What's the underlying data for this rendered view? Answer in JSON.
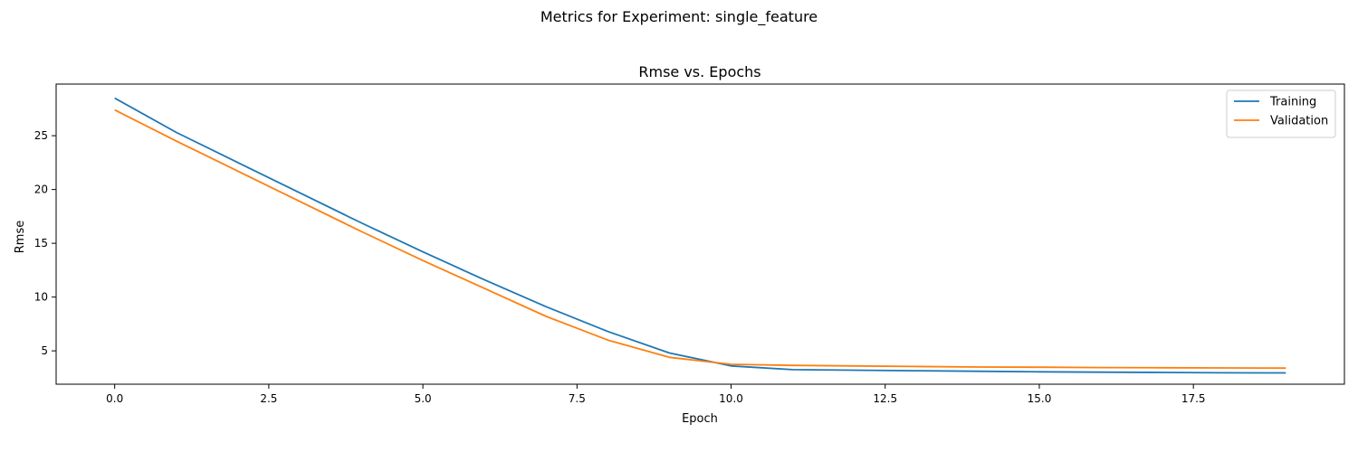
{
  "figure": {
    "suptitle": "Metrics for Experiment: single_feature"
  },
  "chart_data": {
    "type": "line",
    "title": "Rmse vs. Epochs",
    "xlabel": "Epoch",
    "ylabel": "Rmse",
    "xlim": [
      -0.95,
      19.95
    ],
    "ylim": [
      1.9,
      29.8
    ],
    "xticks": [
      0.0,
      2.5,
      5.0,
      7.5,
      10.0,
      12.5,
      15.0,
      17.5
    ],
    "xtick_labels": [
      "0.0",
      "2.5",
      "5.0",
      "7.5",
      "10.0",
      "12.5",
      "15.0",
      "17.5"
    ],
    "yticks": [
      5,
      10,
      15,
      20,
      25
    ],
    "ytick_labels": [
      "5",
      "10",
      "15",
      "20",
      "25"
    ],
    "grid": false,
    "legend_position": "top-right",
    "x": [
      0,
      1,
      2,
      3,
      4,
      5,
      6,
      7,
      8,
      9,
      10,
      11,
      12,
      13,
      14,
      15,
      16,
      17,
      18,
      19
    ],
    "series": [
      {
        "name": "Training",
        "color": "#1f77b4",
        "values": [
          28.5,
          25.3,
          22.5,
          19.7,
          16.9,
          14.2,
          11.6,
          9.1,
          6.8,
          4.8,
          3.6,
          3.25,
          3.2,
          3.15,
          3.1,
          3.05,
          3.02,
          2.99,
          2.96,
          2.95
        ]
      },
      {
        "name": "Validation",
        "color": "#ff7f0e",
        "values": [
          27.4,
          24.5,
          21.7,
          18.9,
          16.1,
          13.4,
          10.8,
          8.2,
          6.0,
          4.4,
          3.75,
          3.65,
          3.6,
          3.55,
          3.5,
          3.48,
          3.45,
          3.43,
          3.41,
          3.4
        ]
      }
    ]
  }
}
